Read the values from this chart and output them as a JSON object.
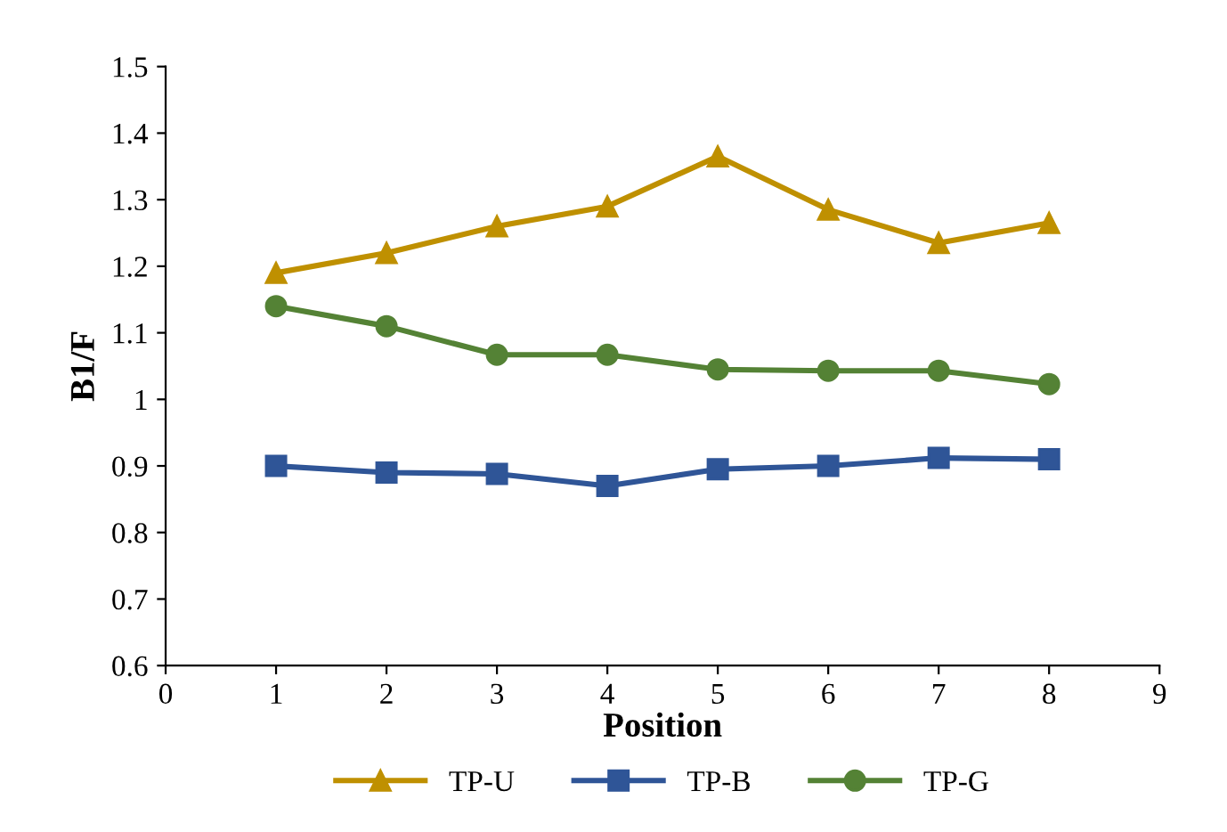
{
  "chart_data": {
    "type": "line",
    "xlabel": "Position",
    "ylabel": "B1/F",
    "x": [
      1,
      2,
      3,
      4,
      5,
      6,
      7,
      8
    ],
    "series": [
      {
        "name": "TP-U",
        "color": "#bf9000",
        "marker": "triangle",
        "values": [
          1.19,
          1.22,
          1.26,
          1.29,
          1.365,
          1.285,
          1.235,
          1.265
        ]
      },
      {
        "name": "TP-B",
        "color": "#2f5597",
        "marker": "square",
        "values": [
          0.9,
          0.89,
          0.888,
          0.87,
          0.895,
          0.9,
          0.912,
          0.91
        ]
      },
      {
        "name": "TP-G",
        "color": "#548235",
        "marker": "circle",
        "values": [
          1.14,
          1.11,
          1.067,
          1.067,
          1.045,
          1.043,
          1.043,
          1.023
        ]
      }
    ],
    "xlim": [
      0,
      9
    ],
    "xticks": [
      0,
      1,
      2,
      3,
      4,
      5,
      6,
      7,
      8,
      9
    ],
    "ylim": [
      0.6,
      1.5
    ],
    "yticks": [
      0.6,
      0.7,
      0.8,
      0.9,
      1,
      1.1,
      1.2,
      1.3,
      1.4,
      1.5
    ],
    "grid": false,
    "legend": "bottom",
    "line_style": "solid"
  }
}
